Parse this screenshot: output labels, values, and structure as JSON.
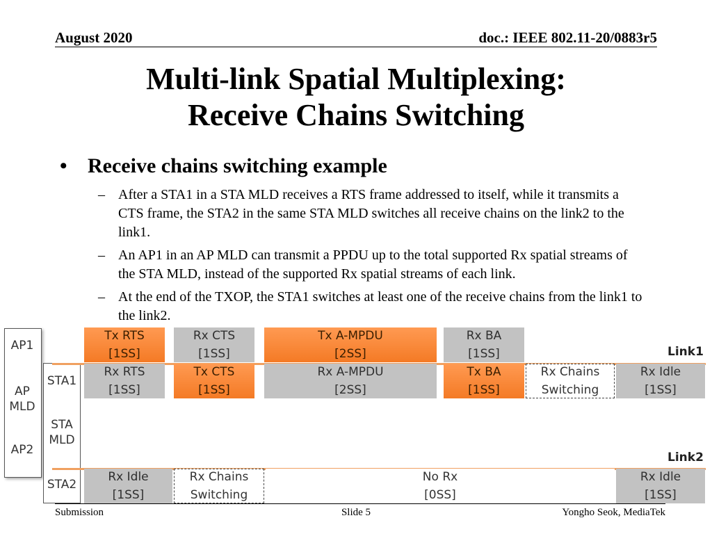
{
  "header": {
    "left": "August 2020",
    "right": "doc.: IEEE 802.11-20/0883r5"
  },
  "title": {
    "line1": "Multi-link Spatial Multiplexing:",
    "line2": "Receive Chains Switching"
  },
  "bullets": {
    "main_marker": "•",
    "main": "Receive chains switching example",
    "sub_marker": "–",
    "sub": [
      "After a STA1 in a STA MLD receives a RTS frame addressed to itself, while it transmits a CTS frame, the STA2 in the same STA MLD switches all receive chains on the link2 to the link1.",
      "An AP1 in an AP MLD can transmit a PPDU up to the total supported Rx spatial streams of the STA MLD, instead of the supported Rx spatial streams of each link.",
      "At the end of the TXOP, the STA1 switches at least one of the receive chains from the link1 to the link2."
    ]
  },
  "diagram": {
    "labels": {
      "ap1": "AP1",
      "ap_mld_1": "AP",
      "ap_mld_2": "MLD",
      "ap2": "AP2",
      "sta1": "STA1",
      "sta_mld_1": "STA",
      "sta_mld_2": "MLD",
      "sta2": "STA2",
      "link1": "Link1",
      "link2": "Link2"
    },
    "colors": {
      "tx": "#f47a25",
      "rx": "#c2c2c2",
      "link_line": "#f0a060"
    },
    "ap1_row": [
      {
        "l1": "Tx RTS",
        "l2": "[1SS]"
      },
      {
        "l1": "Rx CTS",
        "l2": "[1SS]"
      },
      {
        "l1": "Tx A-MPDU",
        "l2": "[2SS]"
      },
      {
        "l1": "Rx BA",
        "l2": "[1SS]"
      }
    ],
    "sta1_row": [
      {
        "l1": "Rx RTS",
        "l2": "[1SS]"
      },
      {
        "l1": "Tx CTS",
        "l2": "[1SS]"
      },
      {
        "l1": "Rx A-MPDU",
        "l2": "[2SS]"
      },
      {
        "l1": "Tx BA",
        "l2": "[1SS]"
      },
      {
        "l1": "Rx Chains",
        "l2": "Switching"
      },
      {
        "l1": "Rx Idle",
        "l2": "[1SS]"
      }
    ],
    "sta2_row": [
      {
        "l1": "Rx Idle",
        "l2": "[1SS]"
      },
      {
        "l1": "Rx Chains",
        "l2": "Switching"
      },
      {
        "l1": "No Rx",
        "l2": "[0SS]"
      },
      {
        "l1": "Rx Idle",
        "l2": "[1SS]"
      }
    ]
  },
  "footer": {
    "left": "Submission",
    "center": "Slide 5",
    "right": "Yongho Seok, MediaTek"
  }
}
